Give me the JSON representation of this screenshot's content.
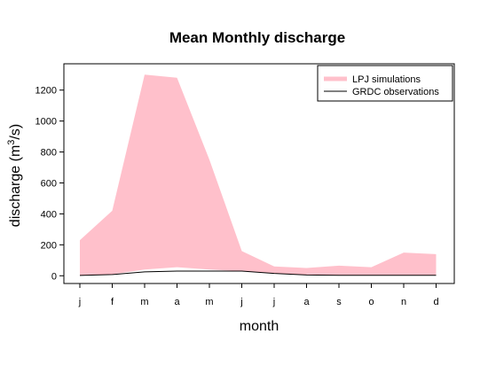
{
  "chart_data": {
    "type": "area",
    "title": "Mean Monthly discharge",
    "xlabel": "month",
    "ylabel_main": "discharge (m",
    "ylabel_sup": "3",
    "ylabel_tail": "/s)",
    "categories": [
      "j",
      "f",
      "m",
      "a",
      "m",
      "j",
      "j",
      "a",
      "s",
      "o",
      "n",
      "d"
    ],
    "ylim": [
      -50,
      1370
    ],
    "yticks": [
      0,
      200,
      400,
      600,
      800,
      1000,
      1200
    ],
    "legend_position": "top-right",
    "series": [
      {
        "name": "LPJ simulations",
        "kind": "band",
        "color": "#FFC0CB",
        "upper": [
          230,
          420,
          1300,
          1280,
          750,
          160,
          60,
          50,
          65,
          55,
          150,
          140
        ],
        "lower": [
          0,
          10,
          40,
          55,
          40,
          30,
          15,
          5,
          5,
          5,
          5,
          5
        ]
      },
      {
        "name": "GRDC observations",
        "kind": "line",
        "color": "#000000",
        "values": [
          2,
          8,
          25,
          30,
          30,
          30,
          15,
          5,
          3,
          3,
          3,
          3
        ]
      }
    ]
  }
}
